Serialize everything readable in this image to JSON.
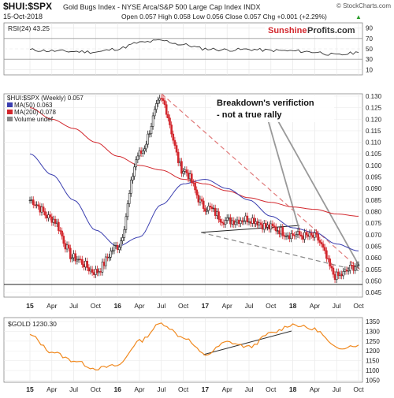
{
  "header": {
    "symbol": "$HUI:$SPX",
    "desc": "Gold Bugs Index - NYSE Arca/S&P 500 Large Cap Index INDX",
    "brand": "© StockCharts.com",
    "date": "15-Oct-2018",
    "ohlc": "Open 0.057  High 0.058  Low 0.056  Close 0.057  Chg +0.001 (+2.29%)",
    "chg_arrow": "▲"
  },
  "rsi": {
    "label": "RSI(24) 43.25",
    "ticks": [
      "90",
      "70",
      "50",
      "30",
      "10"
    ],
    "watermark_brand": "Sunshine",
    "watermark_rest": "Profits.com"
  },
  "main": {
    "legend": [
      {
        "text": "$HUI:$SPX (Weekly) 0.057",
        "color": "#222222"
      },
      {
        "text": "MA(50) 0.063",
        "color": "#3b3fb0"
      },
      {
        "text": "MA(200) 0.078",
        "color": "#d2262c"
      },
      {
        "text": "Volume undef",
        "color": "#888888"
      }
    ],
    "annotation_line1": "Breakdown's verifiction",
    "annotation_line2": "- not a true rally",
    "price_ticks": [
      "0.130",
      "0.125",
      "0.120",
      "0.115",
      "0.110",
      "0.105",
      "0.100",
      "0.095",
      "0.090",
      "0.085",
      "0.080",
      "0.075",
      "0.070",
      "0.065",
      "0.060",
      "0.055",
      "0.050",
      "0.045"
    ]
  },
  "xaxis": {
    "labels": [
      "15",
      "Apr",
      "Jul",
      "Oct",
      "16",
      "Apr",
      "Jul",
      "Oct",
      "17",
      "Apr",
      "Jul",
      "Oct",
      "18",
      "Apr",
      "Jul",
      "Oct"
    ]
  },
  "gold": {
    "label": "$GOLD 1230.30",
    "ticks": [
      "1350",
      "1300",
      "1250",
      "1200",
      "1150",
      "1100",
      "1050"
    ]
  },
  "colors": {
    "accent": "#d2262c",
    "ma50": "#3b3fb0",
    "ma200": "#d2262c",
    "gold": "#f0891f",
    "candle_up": "#222222",
    "candle_down": "#d2262c"
  },
  "chart_data": [
    {
      "type": "line",
      "title": "RSI(24) 43.25",
      "x": [
        "15",
        "Apr",
        "Jul",
        "Oct",
        "16",
        "Apr",
        "Jul",
        "Oct",
        "17",
        "Apr",
        "Jul",
        "Oct",
        "18",
        "Apr",
        "Jul",
        "Oct"
      ],
      "series": [
        {
          "name": "RSI(24)",
          "values": [
            48,
            46,
            45,
            44,
            50,
            62,
            66,
            58,
            50,
            48,
            49,
            47,
            46,
            44,
            38,
            43
          ]
        }
      ],
      "ylim": [
        0,
        100
      ]
    },
    {
      "type": "line",
      "title": "$HUI:$SPX (Weekly) 0.057",
      "x": [
        "15",
        "Apr",
        "Jul",
        "Oct",
        "16",
        "Apr",
        "Jul",
        "Oct",
        "17",
        "Apr",
        "Jul",
        "Oct",
        "18",
        "Apr",
        "Jul",
        "Oct"
      ],
      "series": [
        {
          "name": "$HUI:$SPX (Weekly) 0.057",
          "values": [
            0.085,
            0.077,
            0.06,
            0.054,
            0.065,
            0.105,
            0.128,
            0.098,
            0.082,
            0.076,
            0.077,
            0.073,
            0.07,
            0.069,
            0.052,
            0.057
          ]
        },
        {
          "name": "MA(50) 0.063",
          "values": [
            0.105,
            0.096,
            0.085,
            0.072,
            0.065,
            0.069,
            0.083,
            0.092,
            0.094,
            0.09,
            0.085,
            0.078,
            0.073,
            0.071,
            0.066,
            0.063
          ]
        },
        {
          "name": "MA(200) 0.078",
          "values": [
            0.125,
            0.12,
            0.116,
            0.11,
            0.104,
            0.1,
            0.098,
            0.094,
            0.092,
            0.089,
            0.086,
            0.084,
            0.082,
            0.081,
            0.079,
            0.078
          ]
        }
      ],
      "ylim": [
        0.043,
        0.131
      ]
    },
    {
      "type": "line",
      "title": "$GOLD 1230.30",
      "x": [
        "15",
        "Apr",
        "Jul",
        "Oct",
        "16",
        "Apr",
        "Jul",
        "Oct",
        "17",
        "Apr",
        "Jul",
        "Oct",
        "18",
        "Apr",
        "Jul",
        "Oct"
      ],
      "series": [
        {
          "name": "$GOLD",
          "values": [
            1280,
            1195,
            1150,
            1110,
            1125,
            1250,
            1340,
            1270,
            1180,
            1245,
            1220,
            1290,
            1335,
            1310,
            1215,
            1230
          ]
        }
      ],
      "ylim": [
        1040,
        1370
      ]
    }
  ]
}
